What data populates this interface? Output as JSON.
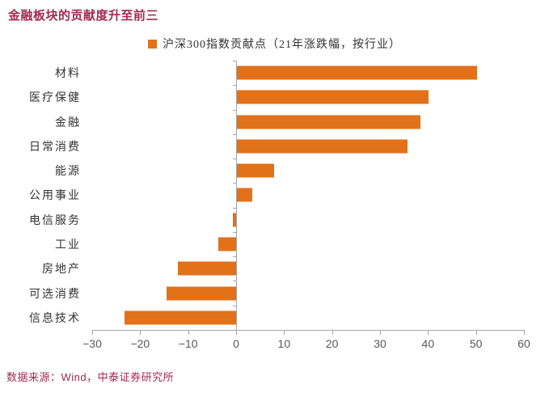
{
  "title": "金融板块的贡献度升至前三",
  "source": "数据来源：Wind，中泰证券研究所",
  "colors": {
    "bar": "#E2711A",
    "title_text": "#A42A4E",
    "axis_line": "#A6A6A6",
    "tick_label": "#595959",
    "category_label": "#333333"
  },
  "chart_data": {
    "type": "bar",
    "orientation": "horizontal",
    "title": "金融板块的贡献度升至前三",
    "legend": "沪深300指数贡献点（21年涨跌幅，按行业）",
    "legend_position": "top-center",
    "categories": [
      "材料",
      "医疗保健",
      "金融",
      "日常消费",
      "能源",
      "公用事业",
      "电信服务",
      "工业",
      "房地产",
      "可选消费",
      "信息技术"
    ],
    "values": [
      50.3,
      40.1,
      38.4,
      35.7,
      7.9,
      3.3,
      -0.7,
      -3.7,
      -12.1,
      -14.5,
      -23.2
    ],
    "xlabel": "",
    "ylabel": "",
    "xlim": [
      -30,
      60
    ],
    "xticks": [
      -30,
      -20,
      -10,
      0,
      10,
      20,
      30,
      40,
      50,
      60
    ],
    "grid": false
  }
}
